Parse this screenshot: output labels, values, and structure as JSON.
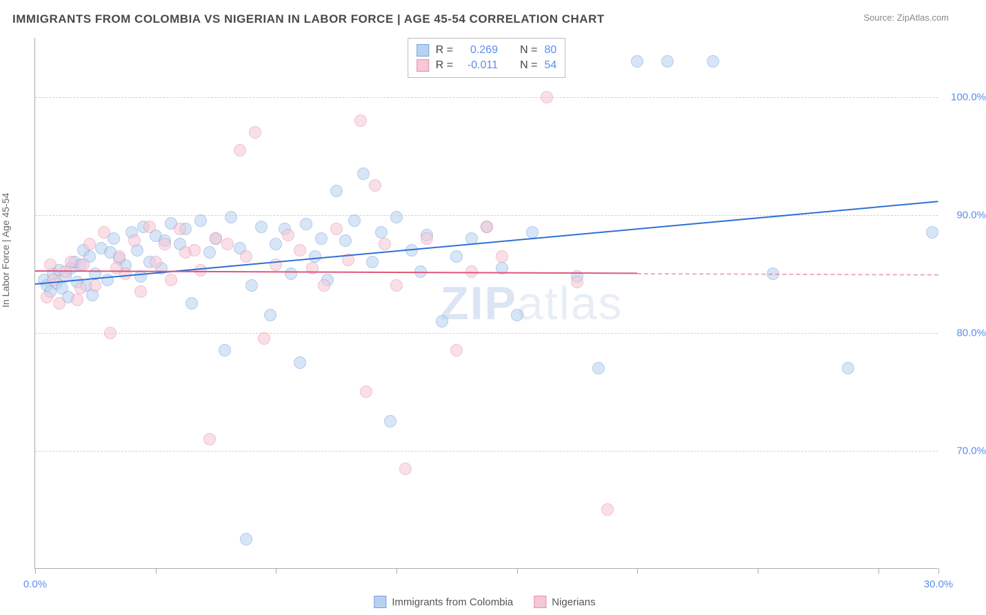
{
  "title": "IMMIGRANTS FROM COLOMBIA VS NIGERIAN IN LABOR FORCE | AGE 45-54 CORRELATION CHART",
  "source": "Source: ZipAtlas.com",
  "ylabel": "In Labor Force | Age 45-54",
  "watermark_bold": "ZIP",
  "watermark_light": "atlas",
  "chart": {
    "type": "scatter",
    "xlim": [
      0,
      30
    ],
    "ylim": [
      60,
      105
    ],
    "x_ticks": [
      0,
      4,
      8,
      12,
      16,
      20,
      24,
      28,
      30
    ],
    "x_tick_labels": {
      "0": "0.0%",
      "30": "30.0%"
    },
    "y_ticks": [
      70,
      80,
      90,
      100
    ],
    "y_tick_labels": [
      "70.0%",
      "80.0%",
      "90.0%",
      "100.0%"
    ],
    "background_color": "#ffffff",
    "grid_color": "#d0d0d0",
    "marker_radius": 9,
    "marker_opacity": 0.55,
    "series": [
      {
        "name": "Immigrants from Colombia",
        "color_fill": "#b8d1f0",
        "color_stroke": "#6fa3e0",
        "trend_color": "#2e6fd6",
        "R": "0.269",
        "N": "80",
        "trend": {
          "x1": 0,
          "y1": 84.2,
          "x2": 30,
          "y2": 91.2,
          "solid_to_x": 30
        },
        "points": [
          [
            0.3,
            84.5
          ],
          [
            0.4,
            84.0
          ],
          [
            0.5,
            83.5
          ],
          [
            0.6,
            85.0
          ],
          [
            0.7,
            84.2
          ],
          [
            0.8,
            85.3
          ],
          [
            0.9,
            83.8
          ],
          [
            1.0,
            84.8
          ],
          [
            1.1,
            83.0
          ],
          [
            1.2,
            85.5
          ],
          [
            1.3,
            86.0
          ],
          [
            1.4,
            84.3
          ],
          [
            1.5,
            85.8
          ],
          [
            1.6,
            87.0
          ],
          [
            1.7,
            84.0
          ],
          [
            1.8,
            86.5
          ],
          [
            2.0,
            85.0
          ],
          [
            2.2,
            87.2
          ],
          [
            2.4,
            84.5
          ],
          [
            2.6,
            88.0
          ],
          [
            2.8,
            86.3
          ],
          [
            3.0,
            85.7
          ],
          [
            3.2,
            88.5
          ],
          [
            3.4,
            87.0
          ],
          [
            3.6,
            89.0
          ],
          [
            3.8,
            86.0
          ],
          [
            4.0,
            88.2
          ],
          [
            4.2,
            85.5
          ],
          [
            4.5,
            89.3
          ],
          [
            4.8,
            87.5
          ],
          [
            5.0,
            88.8
          ],
          [
            5.2,
            82.5
          ],
          [
            5.5,
            89.5
          ],
          [
            5.8,
            86.8
          ],
          [
            6.0,
            88.0
          ],
          [
            6.3,
            78.5
          ],
          [
            6.5,
            89.8
          ],
          [
            6.8,
            87.2
          ],
          [
            7.0,
            62.5
          ],
          [
            7.2,
            84.0
          ],
          [
            7.5,
            89.0
          ],
          [
            7.8,
            81.5
          ],
          [
            8.0,
            87.5
          ],
          [
            8.3,
            88.8
          ],
          [
            8.5,
            85.0
          ],
          [
            8.8,
            77.5
          ],
          [
            9.0,
            89.2
          ],
          [
            9.3,
            86.5
          ],
          [
            9.5,
            88.0
          ],
          [
            9.7,
            84.5
          ],
          [
            10.0,
            92.0
          ],
          [
            10.3,
            87.8
          ],
          [
            10.6,
            89.5
          ],
          [
            10.9,
            93.5
          ],
          [
            11.2,
            86.0
          ],
          [
            11.5,
            88.5
          ],
          [
            11.8,
            72.5
          ],
          [
            12.0,
            89.8
          ],
          [
            12.5,
            87.0
          ],
          [
            12.8,
            85.2
          ],
          [
            13.0,
            88.3
          ],
          [
            13.5,
            81.0
          ],
          [
            14.0,
            86.5
          ],
          [
            14.5,
            88.0
          ],
          [
            15.0,
            89.0
          ],
          [
            15.5,
            85.5
          ],
          [
            16.0,
            81.5
          ],
          [
            16.5,
            88.5
          ],
          [
            18.0,
            84.8
          ],
          [
            18.7,
            77.0
          ],
          [
            20.0,
            103.0
          ],
          [
            21.0,
            103.0
          ],
          [
            22.5,
            103.0
          ],
          [
            24.5,
            85.0
          ],
          [
            27.0,
            77.0
          ],
          [
            29.8,
            88.5
          ],
          [
            1.9,
            83.2
          ],
          [
            2.5,
            86.8
          ],
          [
            3.5,
            84.8
          ],
          [
            4.3,
            87.8
          ]
        ]
      },
      {
        "name": "Nigerians",
        "color_fill": "#f5c8d5",
        "color_stroke": "#e88ba8",
        "trend_color": "#e05577",
        "R": "-0.011",
        "N": "54",
        "trend": {
          "x1": 0,
          "y1": 85.3,
          "x2": 30,
          "y2": 85.0,
          "solid_to_x": 20
        },
        "points": [
          [
            0.4,
            83.0
          ],
          [
            0.6,
            84.5
          ],
          [
            0.8,
            82.5
          ],
          [
            1.0,
            85.2
          ],
          [
            1.2,
            86.0
          ],
          [
            1.4,
            82.8
          ],
          [
            1.6,
            85.8
          ],
          [
            1.8,
            87.5
          ],
          [
            2.0,
            84.0
          ],
          [
            2.3,
            88.5
          ],
          [
            2.5,
            80.0
          ],
          [
            2.8,
            86.5
          ],
          [
            3.0,
            85.0
          ],
          [
            3.3,
            87.8
          ],
          [
            3.5,
            83.5
          ],
          [
            3.8,
            89.0
          ],
          [
            4.0,
            86.0
          ],
          [
            4.3,
            87.5
          ],
          [
            4.5,
            84.5
          ],
          [
            4.8,
            88.8
          ],
          [
            5.0,
            86.8
          ],
          [
            5.3,
            87.0
          ],
          [
            5.5,
            85.3
          ],
          [
            5.8,
            71.0
          ],
          [
            6.0,
            88.0
          ],
          [
            6.4,
            87.5
          ],
          [
            6.8,
            95.5
          ],
          [
            7.0,
            86.5
          ],
          [
            7.3,
            97.0
          ],
          [
            7.6,
            79.5
          ],
          [
            8.0,
            85.8
          ],
          [
            8.4,
            88.3
          ],
          [
            8.8,
            87.0
          ],
          [
            9.2,
            85.5
          ],
          [
            9.6,
            84.0
          ],
          [
            10.0,
            88.8
          ],
          [
            10.4,
            86.2
          ],
          [
            10.8,
            98.0
          ],
          [
            11.0,
            75.0
          ],
          [
            11.3,
            92.5
          ],
          [
            11.6,
            87.5
          ],
          [
            12.0,
            84.0
          ],
          [
            12.3,
            68.5
          ],
          [
            13.0,
            88.0
          ],
          [
            14.0,
            78.5
          ],
          [
            14.5,
            85.2
          ],
          [
            15.0,
            89.0
          ],
          [
            15.5,
            86.5
          ],
          [
            17.0,
            100.0
          ],
          [
            18.0,
            84.3
          ],
          [
            19.0,
            65.0
          ],
          [
            0.5,
            85.8
          ],
          [
            1.5,
            83.8
          ],
          [
            2.7,
            85.5
          ]
        ]
      }
    ]
  },
  "legend_top": [
    {
      "swatch_fill": "#b8d1f0",
      "swatch_stroke": "#6fa3e0",
      "r_label": "R =",
      "r_val": "0.269",
      "n_label": "N =",
      "n_val": "80"
    },
    {
      "swatch_fill": "#f5c8d5",
      "swatch_stroke": "#e88ba8",
      "r_label": "R =",
      "r_val": "-0.011",
      "n_label": "N =",
      "n_val": "54"
    }
  ],
  "legend_bottom": [
    {
      "swatch_fill": "#b8d1f0",
      "swatch_stroke": "#6fa3e0",
      "label": "Immigrants from Colombia"
    },
    {
      "swatch_fill": "#f5c8d5",
      "swatch_stroke": "#e88ba8",
      "label": "Nigerians"
    }
  ]
}
